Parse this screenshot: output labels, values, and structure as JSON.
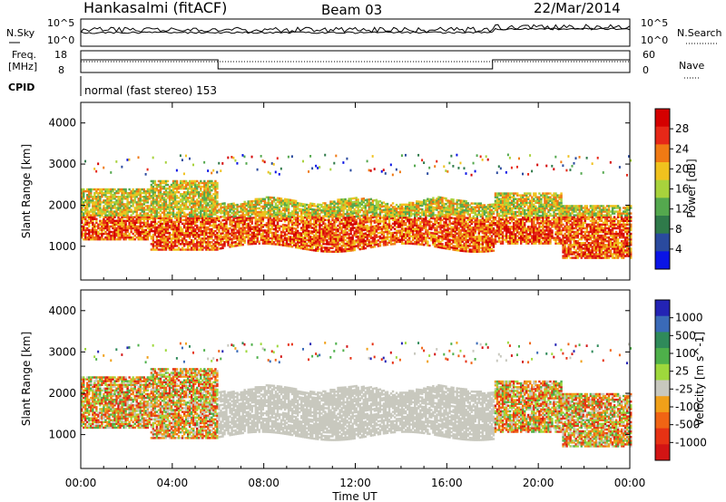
{
  "header": {
    "station": "Hankasalmi (fitACF)",
    "beam": "Beam 03",
    "date": "22/Mar/2014"
  },
  "noise_panel": {
    "left_label": "N.Sky",
    "right_label": "N.Search",
    "left_ticks": [
      "10^5",
      "10^0"
    ],
    "right_ticks": [
      "10^5",
      "10^0"
    ]
  },
  "freq_panel": {
    "left_label_1": "Freq.",
    "left_label_2": "[MHz]",
    "right_label": "Nave",
    "left_ticks": [
      "18",
      "8"
    ],
    "right_ticks": [
      "60",
      "0"
    ]
  },
  "cpid": {
    "label": "CPID",
    "text": "normal (fast stereo) 153"
  },
  "x_axis": {
    "label": "Time UT",
    "ticks": [
      "00:00",
      "04:00",
      "08:00",
      "12:00",
      "16:00",
      "20:00",
      "00:00"
    ]
  },
  "colors": {
    "power": [
      "#0a14e6",
      "#2a4a9e",
      "#2f7a4a",
      "#54a84e",
      "#a8d23c",
      "#f0c21e",
      "#f07a14",
      "#e62818",
      "#d40000"
    ],
    "velocity": [
      "#2323b4",
      "#3a6ab8",
      "#2f8a5a",
      "#4eb04a",
      "#9ed83c",
      "#c8c8be",
      "#f0a019",
      "#f06414",
      "#e63214",
      "#d21414"
    ]
  },
  "chart_data": [
    {
      "type": "heatmap",
      "panel": "power",
      "xlabel": "",
      "ylabel": "Slant Range [km]",
      "x_range_hours": [
        0,
        24
      ],
      "ylim": [
        180,
        4500
      ],
      "y_ticks": [
        1000,
        2000,
        3000,
        4000
      ],
      "colorbar": {
        "label": "Power [dB]",
        "ticks": [
          "4",
          "8",
          "12",
          "16",
          "20",
          "24",
          "28"
        ],
        "range": [
          0,
          30
        ]
      }
    },
    {
      "type": "heatmap",
      "panel": "velocity",
      "xlabel": "Time UT",
      "ylabel": "Slant Range [km]",
      "x_range_hours": [
        0,
        24
      ],
      "ylim": [
        180,
        4500
      ],
      "y_ticks": [
        1000,
        2000,
        3000,
        4000
      ],
      "colorbar": {
        "label": "Velocity [m s^-1]",
        "ticks": [
          "1000",
          "500",
          "100",
          "25",
          "-25",
          "-100",
          "-500",
          "-1000"
        ]
      }
    }
  ]
}
